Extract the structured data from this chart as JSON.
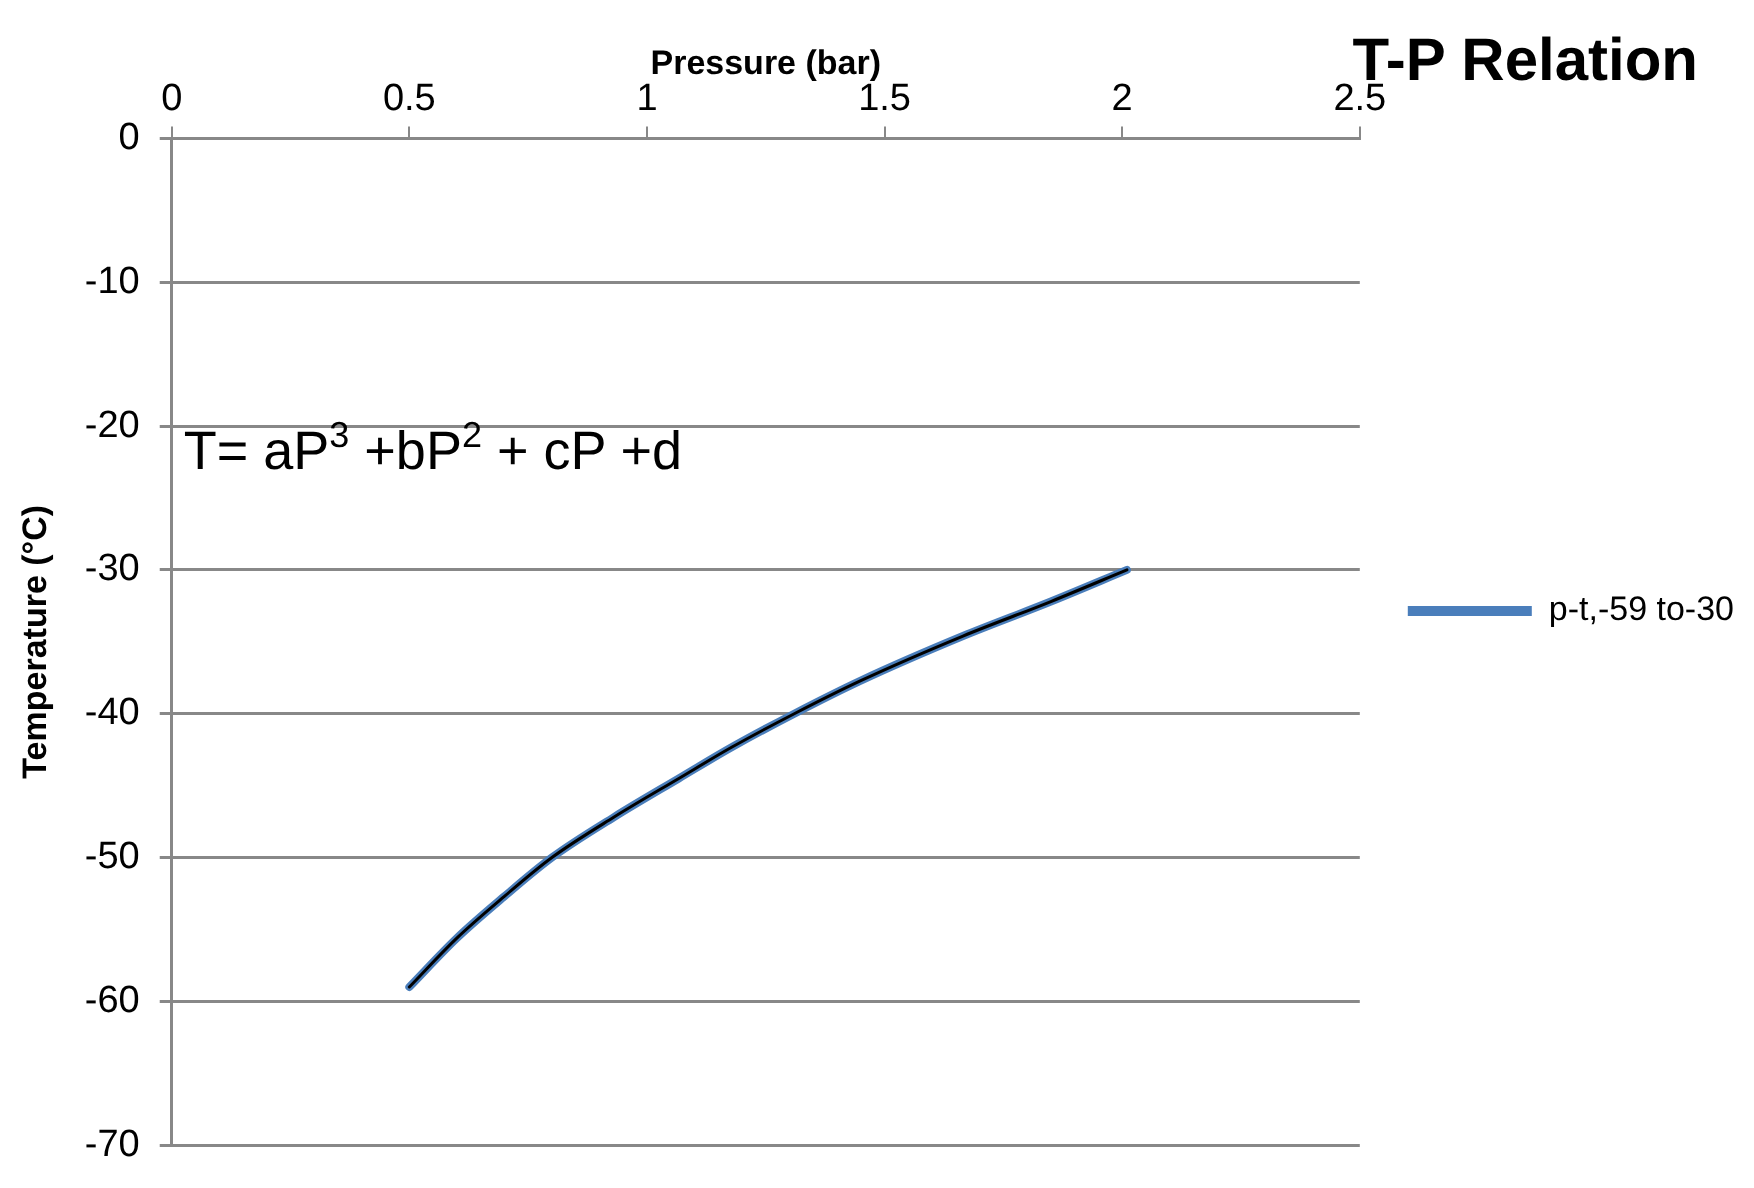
{
  "chart_data": {
    "type": "line",
    "title": "T-P Relation",
    "xlabel": "Pressure (bar)",
    "ylabel": "Temperature (°C)",
    "annotations": [
      "T= aP$^{3}$ +bP$^{2}$ + cP +d"
    ],
    "xlim": [
      0,
      2.5
    ],
    "xticks": [
      0,
      0.5,
      1,
      1.5,
      2,
      2.5
    ],
    "ylim": [
      -70,
      0
    ],
    "yticks": [
      -70,
      -60,
      -50,
      -40,
      -30,
      -20,
      -10,
      0
    ],
    "grid": "y",
    "legend": "right",
    "marker": "none",
    "line_style": "solid",
    "series": [
      {
        "name": "p-t,-59 to-30",
        "color": "#4a7ebb",
        "x": [
          0.5,
          0.6,
          0.7,
          0.8,
          0.93,
          1.067,
          1.18,
          1.31,
          1.45,
          1.665,
          1.85,
          2.01
        ],
        "values": [
          -59,
          -55.6,
          -52.7,
          -50,
          -47.2,
          -44.5,
          -42.3,
          -40,
          -37.7,
          -34.6,
          -32.2,
          -30
        ]
      },
      {
        "type": "line",
        "color": "#000000",
        "x": [
          0.5,
          0.6,
          0.7,
          0.8,
          0.93,
          1.067,
          1.18,
          1.31,
          1.45,
          1.665,
          1.85,
          2.01
        ],
        "values": [
          -59,
          -55.6,
          -52.7,
          -50,
          -47.2,
          -44.5,
          -42.3,
          -40,
          -37.7,
          -34.6,
          -32.2,
          -30
        ]
      }
    ]
  }
}
